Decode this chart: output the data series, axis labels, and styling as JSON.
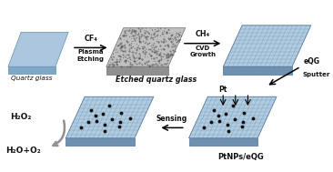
{
  "bg_color": "#ffffff",
  "plate_blue_top": "#adc6e0",
  "plate_blue_side": "#7fa8c8",
  "plate_blue_edge": "#6090b0",
  "plate_gray_top": "#c0c0c0",
  "plate_gray_side": "#909090",
  "plate_gray_edge": "#707070",
  "plate_graphene_top": "#b0cce0",
  "plate_graphene_grid": "#6080a0",
  "plate_graphene_side": "#7090b0",
  "plate_graphene_edge": "#5070a0",
  "dot_color": "#111111",
  "arrow_gray": "#909090",
  "text_color": "#111111",
  "labels": {
    "quartz_glass": "Quartz glass",
    "etched": "Etched quartz glass",
    "cf4": "CF₄",
    "plasma_etching": "Plasma\nEtching",
    "ch4": "CH₄",
    "cvd": "CVD\nGrowth",
    "eqg": "eQG",
    "sputter": "Sputter",
    "pt": "Pt",
    "ptnps": "PtNPs/eQG",
    "sensing": "Sensing",
    "h2o2": "H₂O₂",
    "h2o_o2": "H₂O+O₂"
  },
  "figsize": [
    3.66,
    1.89
  ],
  "dpi": 100
}
